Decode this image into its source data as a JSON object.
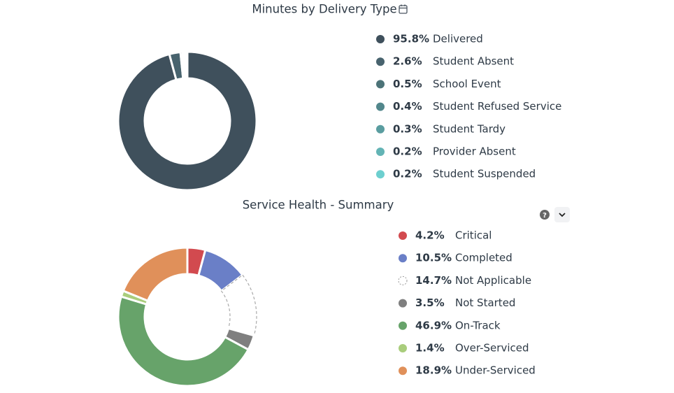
{
  "chart_data": [
    {
      "type": "pie",
      "title": "Minutes by Delivery Type",
      "categories": [
        "Delivered",
        "Student Absent",
        "School Event",
        "Student Refused Service",
        "Student Tardy",
        "Provider Absent",
        "Student Suspended"
      ],
      "values": [
        95.8,
        2.6,
        0.5,
        0.4,
        0.3,
        0.2,
        0.2
      ],
      "value_labels": [
        "95.8%",
        "2.6%",
        "0.5%",
        "0.4%",
        "0.3%",
        "0.2%",
        "0.2%"
      ],
      "colors": [
        "#3f505c",
        "#48636e",
        "#4c7378",
        "#52878c",
        "#5a9da0",
        "#63b4b5",
        "#6dcfcf"
      ]
    },
    {
      "type": "pie",
      "title": "Service Health - Summary",
      "categories": [
        "Critical",
        "Completed",
        "Not Applicable",
        "Not Started",
        "On-Track",
        "Over-Serviced",
        "Under-Serviced"
      ],
      "values": [
        4.2,
        10.5,
        14.7,
        3.5,
        46.9,
        1.4,
        18.9
      ],
      "value_labels": [
        "4.2%",
        "10.5%",
        "14.7%",
        "3.5%",
        "46.9%",
        "1.4%",
        "18.9%"
      ],
      "colors": [
        "#d24a4f",
        "#6a7fc7",
        "#ffffff",
        "#7f7f7f",
        "#67a36a",
        "#a9cd7c",
        "#e0905a"
      ]
    }
  ]
}
